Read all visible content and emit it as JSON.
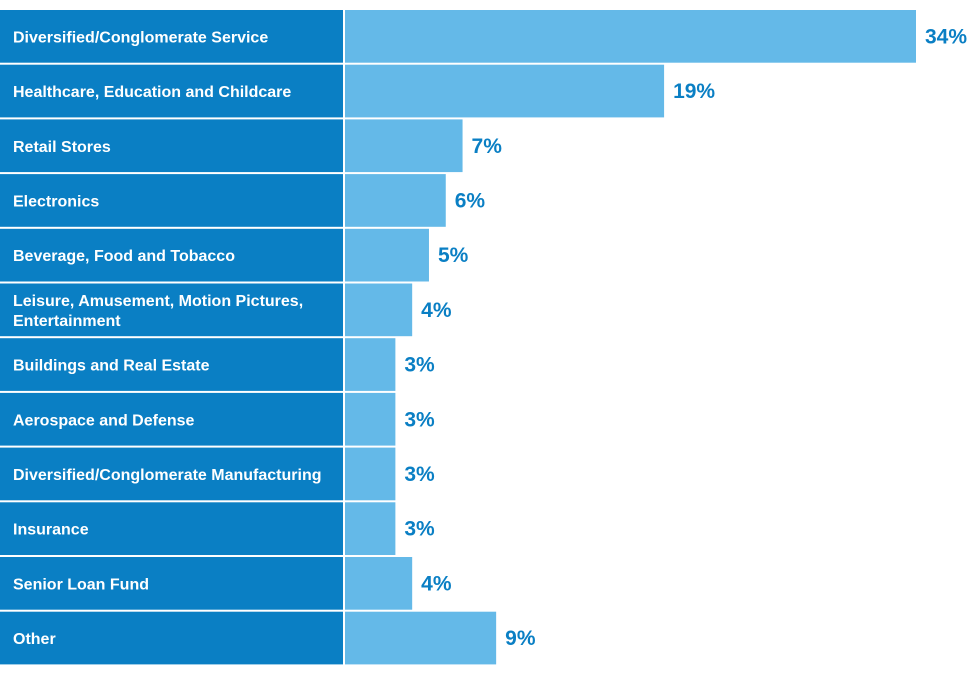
{
  "colors": {
    "label_cell": "#0a7fc4",
    "bar": "#64b9e8",
    "value_text": "#0a7fc4",
    "separator": "#ffffff"
  },
  "chart_data": {
    "type": "bar",
    "orientation": "horizontal",
    "title": "",
    "xlabel": "",
    "ylabel": "",
    "grid": false,
    "legend": "none",
    "xlim": [
      0,
      34
    ],
    "unit": "%",
    "categories": [
      [
        "Diversified/Conglomerate Service"
      ],
      [
        "Healthcare, Education and Childcare"
      ],
      [
        "Retail Stores"
      ],
      [
        "Electronics"
      ],
      [
        "Beverage, Food and Tobacco"
      ],
      [
        "Leisure, Amusement, Motion Pictures,",
        "Entertainment"
      ],
      [
        "Buildings and Real Estate"
      ],
      [
        "Aerospace and Defense"
      ],
      [
        "Diversified/Conglomerate Manufacturing"
      ],
      [
        "Insurance"
      ],
      [
        "Senior Loan Fund"
      ],
      [
        "Other"
      ]
    ],
    "values": [
      34,
      19,
      7,
      6,
      5,
      4,
      3,
      3,
      3,
      3,
      4,
      9
    ],
    "value_labels": [
      "34%",
      "19%",
      "7%",
      "6%",
      "5%",
      "4%",
      "3%",
      "3%",
      "3%",
      "3%",
      "4%",
      "9%"
    ]
  }
}
